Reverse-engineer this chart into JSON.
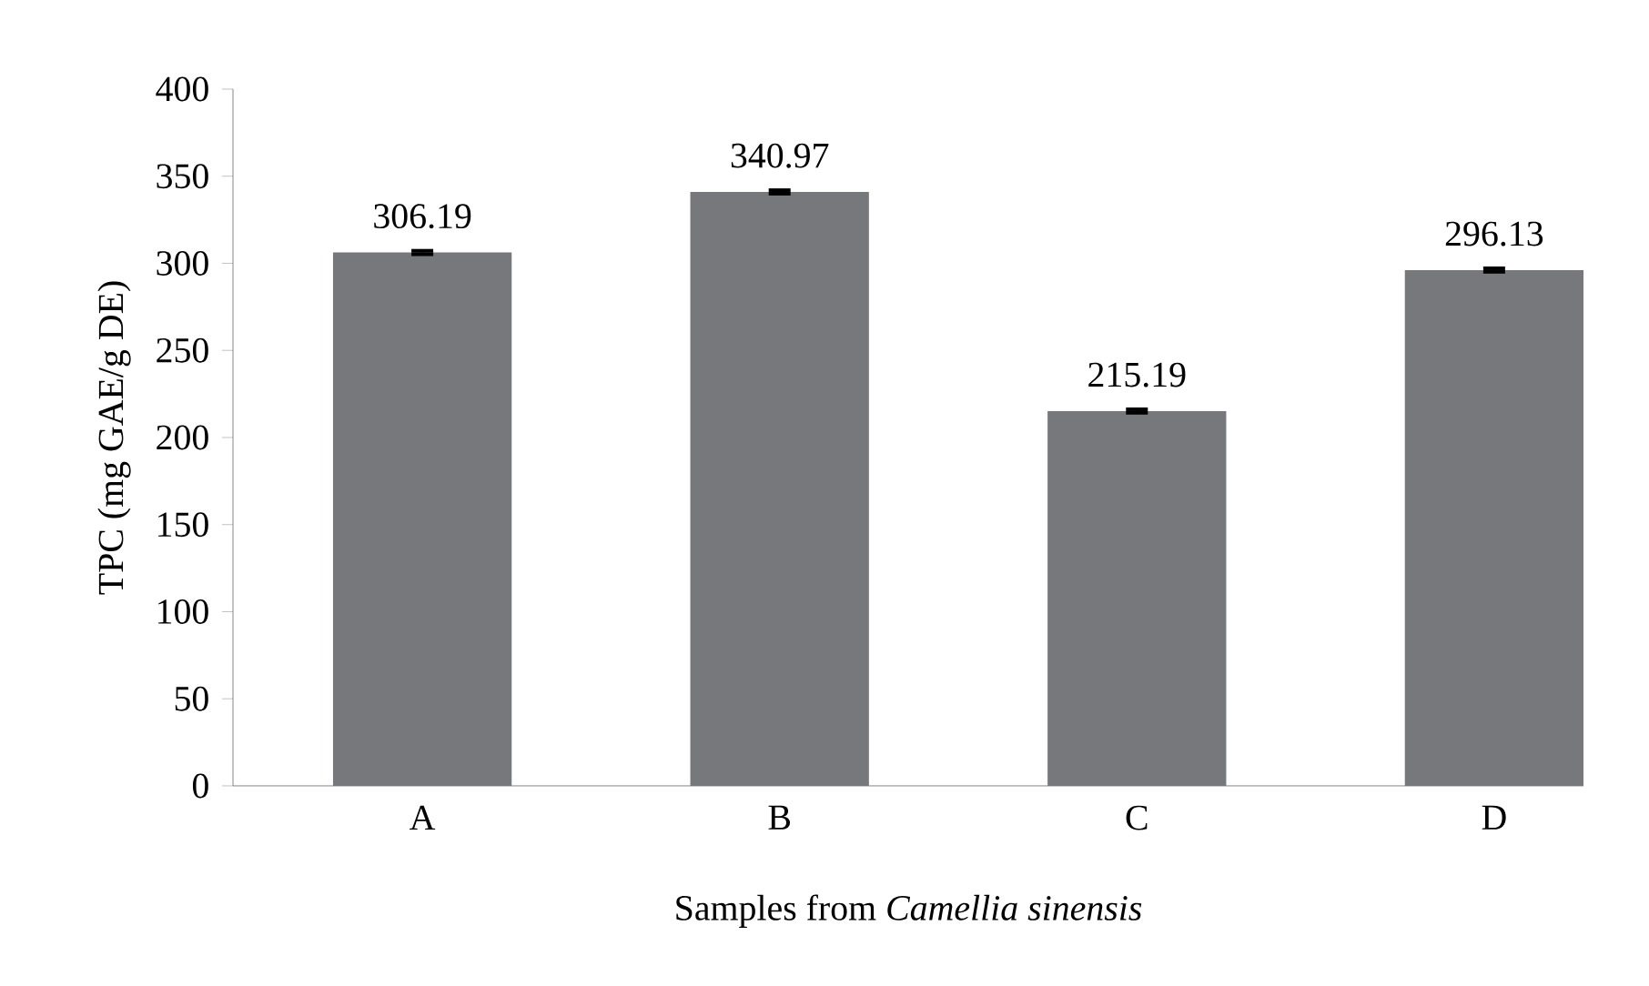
{
  "chart_data": {
    "type": "bar",
    "xlabel": "Samples from *Camellia sinensis*",
    "ylabel": "TPC (mg GAE/g DE)",
    "categories": [
      "A",
      "B",
      "C",
      "D"
    ],
    "values": [
      306.19,
      340.97,
      215.19,
      296.13
    ],
    "errors": [
      1,
      1,
      1,
      1
    ],
    "color": "#77787b",
    "data_labels": true,
    "ylim": [
      0,
      400
    ],
    "yticks": [
      0,
      50,
      100,
      150,
      200,
      250,
      300,
      350,
      400
    ]
  }
}
